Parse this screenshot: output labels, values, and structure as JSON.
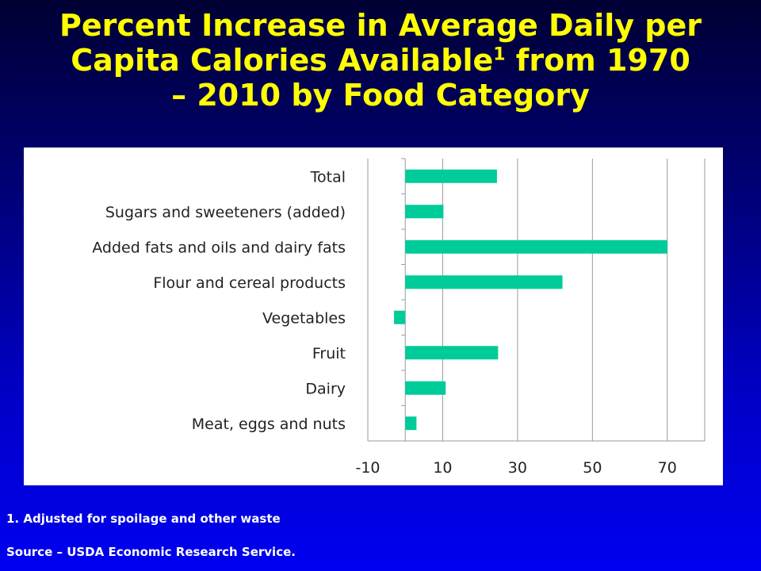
{
  "slide": {
    "title_line1": "Percent Increase in Average Daily per",
    "title_line2_pre": "Capita Calories Available",
    "title_superscript": "1",
    "title_line2_post": " from 1970",
    "title_line3": "– 2010 by Food Category",
    "footnote": "1. Adjusted for spoilage and other waste",
    "source": "Source – USDA Economic Research Service.",
    "title_color": "#ffff00",
    "text_color": "#ffffff"
  },
  "chart_data": {
    "type": "bar",
    "orientation": "horizontal",
    "title": "",
    "xlabel": "",
    "ylabel": "",
    "categories": [
      "Total",
      "Sugars and sweeteners (added)",
      "Added fats and oils and dairy fats",
      "Flour and cereal products",
      "Vegetables",
      "Fruit",
      "Dairy",
      "Meat, eggs and nuts"
    ],
    "values": [
      24.5,
      10.2,
      70,
      42,
      -3,
      24.8,
      10.8,
      3
    ],
    "xlim": [
      -10,
      80
    ],
    "xticks": [
      -10,
      10,
      30,
      50,
      70
    ],
    "xtick_labels": [
      "-10",
      "10",
      "30",
      "50",
      "70"
    ],
    "grid": true,
    "bar_color": "#00cc99",
    "legend": "none"
  }
}
